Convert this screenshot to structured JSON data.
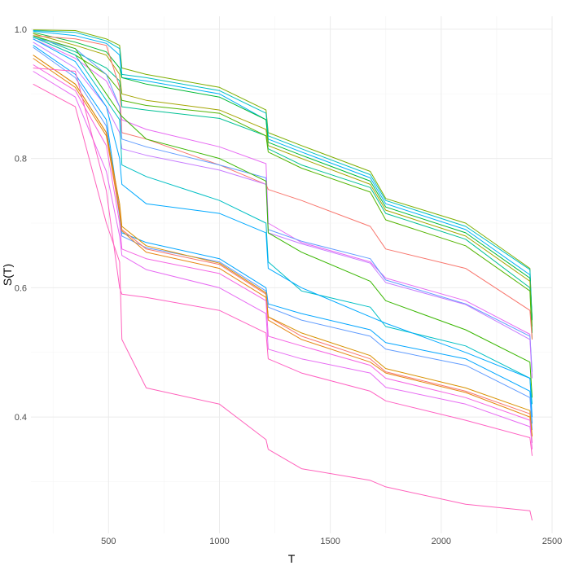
{
  "chart_data": {
    "type": "line",
    "title": "",
    "xlabel": "T",
    "ylabel": "S(T)",
    "xlim": [
      150,
      2500
    ],
    "ylim": [
      0.22,
      1.02
    ],
    "x_ticks": [
      500,
      1000,
      1500,
      2000,
      2500
    ],
    "x_tick_labels": [
      "500",
      "1000",
      "1500",
      "2000",
      "2500"
    ],
    "y_ticks": [
      0.4,
      0.6,
      0.8,
      1.0
    ],
    "y_tick_labels": [
      "0.4",
      "0.6",
      "0.8",
      "1.0"
    ],
    "grid": true,
    "legend": "none",
    "x": [
      160,
      350,
      490,
      550,
      560,
      670,
      1000,
      1210,
      1220,
      1370,
      1680,
      1750,
      2110,
      2400,
      2410
    ],
    "series": [
      {
        "color": "#7CAE00",
        "values": [
          0.999,
          0.998,
          0.985,
          0.975,
          0.94,
          0.93,
          0.91,
          0.875,
          0.84,
          0.82,
          0.78,
          0.738,
          0.7,
          0.63,
          0.54
        ]
      },
      {
        "color": "#00BFC4",
        "values": [
          0.998,
          0.995,
          0.982,
          0.97,
          0.93,
          0.925,
          0.905,
          0.87,
          0.835,
          0.815,
          0.775,
          0.735,
          0.695,
          0.628,
          0.55
        ]
      },
      {
        "color": "#00B0F6",
        "values": [
          0.997,
          0.99,
          0.978,
          0.96,
          0.925,
          0.92,
          0.9,
          0.86,
          0.83,
          0.81,
          0.77,
          0.73,
          0.69,
          0.62,
          0.55
        ]
      },
      {
        "color": "#00BA38",
        "values": [
          0.995,
          0.98,
          0.965,
          0.94,
          0.925,
          0.915,
          0.895,
          0.86,
          0.825,
          0.805,
          0.765,
          0.725,
          0.685,
          0.615,
          0.55
        ]
      },
      {
        "color": "#A3A500",
        "values": [
          0.993,
          0.975,
          0.96,
          0.93,
          0.9,
          0.89,
          0.875,
          0.845,
          0.82,
          0.8,
          0.76,
          0.72,
          0.68,
          0.61,
          0.53
        ]
      },
      {
        "color": "#00C094",
        "values": [
          0.99,
          0.965,
          0.94,
          0.92,
          0.88,
          0.875,
          0.862,
          0.835,
          0.815,
          0.79,
          0.755,
          0.715,
          0.675,
          0.6,
          0.53
        ]
      },
      {
        "color": "#53B400",
        "values": [
          0.988,
          0.96,
          0.93,
          0.905,
          0.89,
          0.882,
          0.87,
          0.835,
          0.81,
          0.785,
          0.748,
          0.705,
          0.665,
          0.595,
          0.52
        ]
      },
      {
        "color": "#E76BF3",
        "values": [
          0.985,
          0.955,
          0.92,
          0.88,
          0.86,
          0.845,
          0.818,
          0.792,
          0.7,
          0.67,
          0.64,
          0.615,
          0.58,
          0.528,
          0.46
        ]
      },
      {
        "color": "#F8766D",
        "values": [
          0.99,
          0.985,
          0.975,
          0.91,
          0.84,
          0.83,
          0.79,
          0.76,
          0.752,
          0.735,
          0.695,
          0.66,
          0.63,
          0.565,
          0.52
        ]
      },
      {
        "color": "#619CFF",
        "values": [
          0.987,
          0.97,
          0.93,
          0.88,
          0.83,
          0.818,
          0.79,
          0.77,
          0.69,
          0.672,
          0.645,
          0.612,
          0.575,
          0.525,
          0.47
        ]
      },
      {
        "color": "#C77CFF",
        "values": [
          0.98,
          0.94,
          0.88,
          0.84,
          0.815,
          0.805,
          0.782,
          0.76,
          0.685,
          0.668,
          0.638,
          0.608,
          0.574,
          0.52,
          0.46
        ]
      },
      {
        "color": "#39B600",
        "values": [
          0.99,
          0.97,
          0.9,
          0.87,
          0.865,
          0.83,
          0.8,
          0.765,
          0.685,
          0.655,
          0.61,
          0.58,
          0.535,
          0.485,
          0.43
        ]
      },
      {
        "color": "#00BFC4",
        "values": [
          0.988,
          0.96,
          0.89,
          0.86,
          0.79,
          0.772,
          0.735,
          0.7,
          0.64,
          0.595,
          0.57,
          0.54,
          0.51,
          0.46,
          0.42
        ]
      },
      {
        "color": "#00A9FF",
        "values": [
          0.985,
          0.95,
          0.88,
          0.8,
          0.76,
          0.73,
          0.715,
          0.685,
          0.63,
          0.6,
          0.555,
          0.545,
          0.5,
          0.46,
          0.4
        ]
      },
      {
        "color": "#00A5FF",
        "values": [
          0.975,
          0.93,
          0.86,
          0.72,
          0.685,
          0.67,
          0.645,
          0.6,
          0.575,
          0.56,
          0.535,
          0.515,
          0.49,
          0.44,
          0.39
        ]
      },
      {
        "color": "#619CFF",
        "values": [
          0.972,
          0.925,
          0.85,
          0.71,
          0.68,
          0.662,
          0.64,
          0.595,
          0.57,
          0.55,
          0.525,
          0.505,
          0.48,
          0.43,
          0.38
        ]
      },
      {
        "color": "#F8766D",
        "values": [
          0.96,
          0.915,
          0.84,
          0.72,
          0.69,
          0.66,
          0.636,
          0.59,
          0.555,
          0.525,
          0.49,
          0.47,
          0.44,
          0.405,
          0.37
        ]
      },
      {
        "color": "#D89000",
        "values": [
          0.96,
          0.915,
          0.84,
          0.73,
          0.695,
          0.665,
          0.638,
          0.592,
          0.555,
          0.53,
          0.495,
          0.475,
          0.445,
          0.41,
          0.37
        ]
      },
      {
        "color": "#E68613",
        "values": [
          0.955,
          0.91,
          0.835,
          0.715,
          0.688,
          0.655,
          0.63,
          0.585,
          0.55,
          0.52,
          0.485,
          0.468,
          0.438,
          0.4,
          0.36
        ]
      },
      {
        "color": "#F564E3",
        "values": [
          0.945,
          0.905,
          0.82,
          0.7,
          0.66,
          0.645,
          0.622,
          0.58,
          0.525,
          0.51,
          0.48,
          0.46,
          0.43,
          0.395,
          0.35
        ]
      },
      {
        "color": "#E76BF3",
        "values": [
          0.935,
          0.895,
          0.78,
          0.68,
          0.65,
          0.628,
          0.6,
          0.56,
          0.505,
          0.49,
          0.468,
          0.446,
          0.42,
          0.385,
          0.36
        ]
      },
      {
        "color": "#FF61C3",
        "values": [
          0.94,
          0.935,
          0.75,
          0.6,
          0.59,
          0.585,
          0.565,
          0.53,
          0.49,
          0.468,
          0.44,
          0.425,
          0.395,
          0.368,
          0.34
        ]
      },
      {
        "color": "#FF62BC",
        "values": [
          0.915,
          0.88,
          0.7,
          0.64,
          0.52,
          0.445,
          0.42,
          0.365,
          0.35,
          0.32,
          0.302,
          0.292,
          0.265,
          0.255,
          0.24
        ]
      }
    ]
  }
}
